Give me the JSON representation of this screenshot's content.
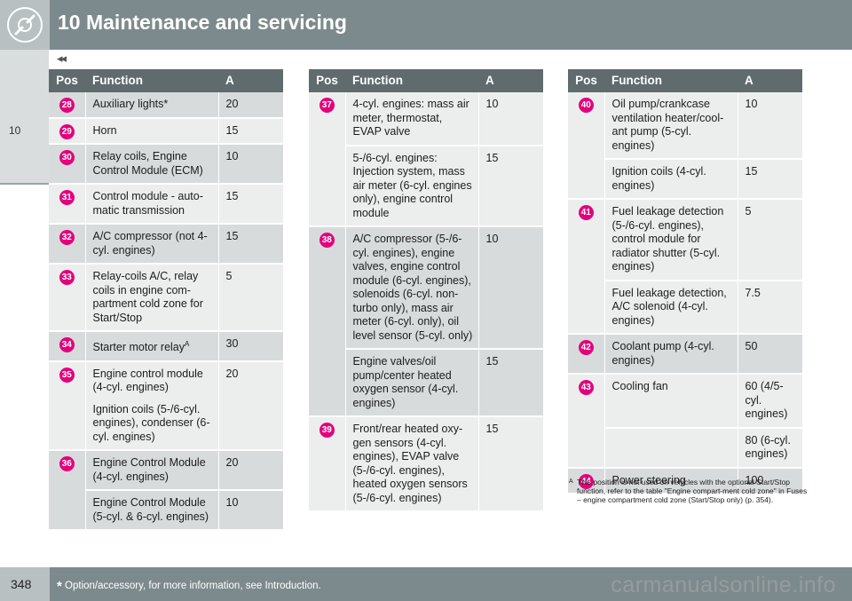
{
  "header": {
    "title": "10 Maintenance and servicing",
    "chevrons": "◂◂"
  },
  "side_tab": {
    "label": "10"
  },
  "col_headers": {
    "pos": "Pos",
    "function": "Function",
    "a": "A"
  },
  "tables": [
    {
      "rows": [
        {
          "pos": "28",
          "shade": "shade",
          "cells": [
            {
              "fn": [
                "Auxiliary lights*"
              ],
              "a": "20"
            }
          ]
        },
        {
          "pos": "29",
          "shade": "light",
          "cells": [
            {
              "fn": [
                "Horn"
              ],
              "a": "15"
            }
          ]
        },
        {
          "pos": "30",
          "shade": "shade",
          "cells": [
            {
              "fn": [
                "Relay coils, Engine Control Module (ECM)"
              ],
              "a": "10"
            }
          ]
        },
        {
          "pos": "31",
          "shade": "light",
          "cells": [
            {
              "fn": [
                "Control module - auto-matic transmission"
              ],
              "a": "15"
            }
          ]
        },
        {
          "pos": "32",
          "shade": "shade",
          "cells": [
            {
              "fn": [
                "A/C compressor (not 4-cyl. engines)"
              ],
              "a": "15"
            }
          ]
        },
        {
          "pos": "33",
          "shade": "light",
          "cells": [
            {
              "fn": [
                "Relay-coils A/C, relay coils in engine com-partment cold zone for Start/Stop"
              ],
              "a": "5"
            }
          ]
        },
        {
          "pos": "34",
          "shade": "shade",
          "cells": [
            {
              "fn": [
                "Starter motor relay"
              ],
              "sup": "A",
              "a": "30"
            }
          ]
        },
        {
          "pos": "35",
          "shade": "light",
          "cells": [
            {
              "fn": [
                "Engine control module (4-cyl. engines)",
                "Ignition coils (5-/6-cyl. engines), condenser (6-cyl. engines)"
              ],
              "a": "20"
            }
          ]
        },
        {
          "pos": "36",
          "shade": "shade",
          "cells": [
            {
              "fn": [
                "Engine Control Module (4-cyl. engines)"
              ],
              "a": "20"
            },
            {
              "fn": [
                "Engine Control Module (5-cyl. & 6-cyl. engines)"
              ],
              "a": "10"
            }
          ]
        }
      ]
    },
    {
      "rows": [
        {
          "pos": "37",
          "shade": "light",
          "cells": [
            {
              "fn": [
                "4-cyl. engines: mass air meter, thermostat, EVAP valve"
              ],
              "a": "10"
            },
            {
              "fn": [
                "5-/6-cyl. engines: Injection system, mass air meter (6-cyl. engines only), engine control module"
              ],
              "a": "15"
            }
          ]
        },
        {
          "pos": "38",
          "shade": "shade",
          "cells": [
            {
              "fn": [
                "A/C compressor (5-/6-cyl. engines), engine valves, engine control module (6-cyl. engines), solenoids (6-cyl. non-turbo only), mass air meter (6-cyl. only), oil level sensor (5-cyl. only)"
              ],
              "a": "10"
            },
            {
              "fn": [
                "Engine valves/oil pump/center heated oxygen sensor (4-cyl. engines)"
              ],
              "a": "15"
            }
          ]
        },
        {
          "pos": "39",
          "shade": "light",
          "cells": [
            {
              "fn": [
                "Front/rear heated oxy-gen sensors (4-cyl. engines), EVAP valve (5-/6-cyl. engines), heated oxygen sensors (5-/6-cyl. engines)"
              ],
              "a": "15"
            }
          ]
        }
      ]
    },
    {
      "rows": [
        {
          "pos": "40",
          "shade": "light",
          "cells": [
            {
              "fn": [
                "Oil pump/crankcase ventilation heater/cool-ant pump (5-cyl. engines)"
              ],
              "a": "10"
            },
            {
              "fn": [
                "Ignition coils (4-cyl. engines)"
              ],
              "a": "15"
            }
          ]
        },
        {
          "pos": "41",
          "shade": "light",
          "cells": [
            {
              "fn": [
                "Fuel leakage detection (5-/6-cyl. engines), control module for radiator shutter (5-cyl. engines)"
              ],
              "a": "5"
            },
            {
              "fn": [
                "Fuel leakage detection, A/C solenoid (4-cyl. engines)"
              ],
              "a": "7.5"
            }
          ]
        },
        {
          "pos": "42",
          "shade": "shade",
          "cells": [
            {
              "fn": [
                "Coolant pump (4-cyl. engines)"
              ],
              "a": "50"
            }
          ]
        },
        {
          "pos": "43",
          "shade": "light",
          "cells": [
            {
              "fn": [
                "Cooling fan"
              ],
              "a": "60 (4/5-cyl. engines)"
            },
            {
              "fn": [
                ""
              ],
              "a": "80 (6-cyl. engines)"
            }
          ]
        },
        {
          "pos": "44",
          "shade": "shade",
          "cells": [
            {
              "fn": [
                "Power steering"
              ],
              "a": "100"
            }
          ]
        }
      ]
    }
  ],
  "footnote": {
    "mark": "A",
    "text": "This position is not used on vehicles with the optional Start/Stop function, refer to the table \"Engine compart-ment cold zone\" in Fuses – engine compartment cold zone (Start/Stop only) (p. 354)."
  },
  "footer": {
    "page_number": "348",
    "asterisk": "*",
    "note": "Option/accessory, for more information, see Introduction.",
    "watermark": "carmanualsonline.info"
  }
}
